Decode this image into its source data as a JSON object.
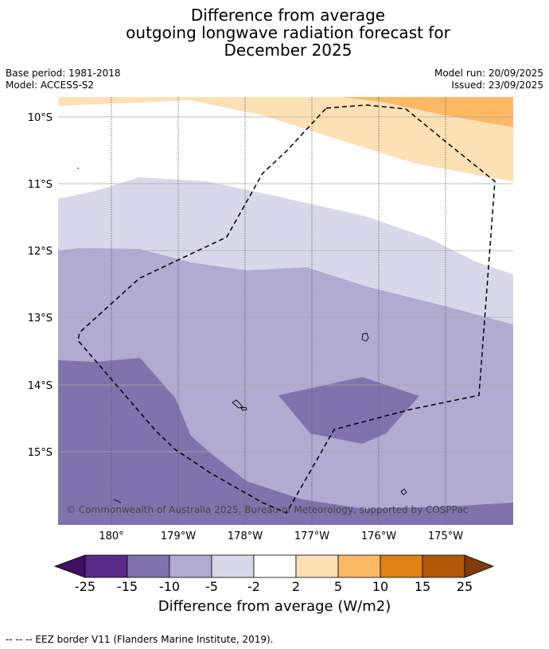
{
  "title": {
    "line1": "Difference from average",
    "line2": "outgoing longwave radiation forecast for",
    "line3": "December 2025"
  },
  "meta": {
    "base_period": "Base period: 1981-2018",
    "model": "Model: ACCESS-S2",
    "model_run": "Model run: 20/09/2025",
    "issued": "Issued: 23/09/2025"
  },
  "map": {
    "lat_labels": [
      "10°S",
      "11°S",
      "12°S",
      "13°S",
      "14°S",
      "15°S"
    ],
    "lon_labels": [
      "180°",
      "179°W",
      "178°W",
      "177°W",
      "176°W",
      "175°W"
    ],
    "copyright": "© Commonwealth of Australia 2025, Bureau of Meteorology, supported by COSPPac",
    "colors": {
      "c_neg25": "#3f1060",
      "c_neg15_25": "#5a2a8a",
      "c_neg10_15": "#8073ad",
      "c_neg5_10": "#b1aad1",
      "c_neg2_5": "#d8d8ea",
      "c_zero": "#ffffff",
      "c_2_5": "#fee0b5",
      "c_5_10": "#fdb863",
      "c_10_15": "#e08214",
      "c_15_25": "#b35806",
      "c_25": "#7f3b08"
    }
  },
  "colorbar": {
    "ticks": [
      "-25",
      "-15",
      "-10",
      "-5",
      "-2",
      "2",
      "5",
      "10",
      "15",
      "25"
    ],
    "label": "Difference from average (W/m2)"
  },
  "footnote": "-- -- -- EEZ border V11 (Flanders Marine Institute, 2019)."
}
